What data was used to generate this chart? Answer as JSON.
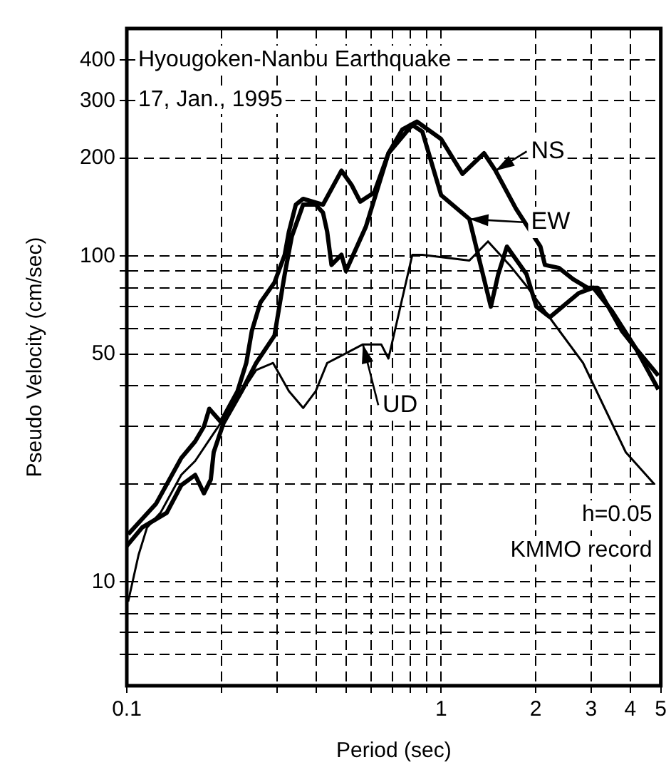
{
  "chart_data": {
    "type": "line",
    "xlabel": "Period (sec)",
    "ylabel": "Pseudo Velocity (cm/sec)",
    "annotations": [
      "Hyougoken-Nanbu Earthquake",
      "17, Jan., 1995",
      "h=0.05",
      "KMMO record"
    ],
    "log": "xy",
    "grid": true,
    "legend": "top right",
    "marker": "none",
    "line_style": "solid",
    "xlim": [
      0.1,
      5
    ],
    "ylim": [
      4.8,
      500
    ],
    "xticks": [
      0.1,
      {
        "value": 0.2,
        "label": null
      },
      {
        "value": 0.3,
        "label": null
      },
      {
        "value": 0.4,
        "label": null
      },
      {
        "value": 0.5,
        "label": null
      },
      {
        "value": 0.6,
        "label": null
      },
      {
        "value": 0.7,
        "label": null
      },
      {
        "value": 0.8,
        "label": null
      },
      {
        "value": 0.9,
        "label": null
      },
      1,
      2,
      3,
      4,
      5
    ],
    "yticks": [
      {
        "value": 6,
        "label": null
      },
      {
        "value": 7,
        "label": null
      },
      {
        "value": 8,
        "label": null
      },
      {
        "value": 9,
        "label": null
      },
      10,
      {
        "value": 20,
        "label": null
      },
      {
        "value": 30,
        "label": null
      },
      {
        "value": 40,
        "label": null
      },
      50,
      {
        "value": 60,
        "label": null
      },
      {
        "value": 70,
        "label": null
      },
      {
        "value": 80,
        "label": null
      },
      {
        "value": 90,
        "label": null
      },
      100,
      200,
      300,
      400
    ],
    "series": [
      {
        "name": "NS",
        "color": "#000000",
        "x": [
          0.101,
          0.124,
          0.149,
          0.165,
          0.176,
          0.183,
          0.199,
          0.225,
          0.24,
          0.25,
          0.266,
          0.295,
          0.318,
          0.328,
          0.345,
          0.364,
          0.421,
          0.482,
          0.52,
          0.553,
          0.613,
          0.68,
          0.753,
          0.837,
          1.0,
          1.17,
          1.37,
          1.49,
          1.73,
          2.07,
          2.14,
          2.37,
          2.63,
          2.92,
          3.15,
          3.76,
          4.17,
          4.91
        ],
        "values": [
          14,
          17.4,
          24,
          27,
          30,
          34,
          31,
          38.5,
          47,
          59,
          72,
          83,
          101,
          119,
          144,
          150,
          144,
          183,
          165,
          147,
          157,
          207,
          245,
          259,
          229,
          179,
          207,
          183,
          140,
          107,
          94,
          92,
          85,
          80,
          80,
          59,
          52,
          39
        ]
      },
      {
        "name": "EW",
        "color": "#000000",
        "x": [
          0.1,
          0.112,
          0.134,
          0.149,
          0.165,
          0.176,
          0.185,
          0.189,
          0.203,
          0.232,
          0.258,
          0.295,
          0.318,
          0.335,
          0.364,
          0.399,
          0.421,
          0.434,
          0.448,
          0.482,
          0.498,
          0.576,
          0.68,
          0.81,
          0.872,
          1.0,
          1.23,
          1.37,
          1.44,
          1.52,
          1.62,
          1.87,
          2.01,
          2.22,
          2.74,
          3.05,
          3.49,
          4.17,
          4.91
        ],
        "values": [
          12.9,
          14.7,
          16.3,
          19.8,
          21.3,
          18.7,
          20.6,
          25,
          30.7,
          38.5,
          47,
          57,
          88,
          115,
          144,
          144,
          136,
          119,
          94,
          101,
          90,
          123,
          207,
          253,
          241,
          154,
          130,
          85,
          70,
          88,
          107,
          88,
          70,
          65,
          77,
          80,
          68,
          52,
          43
        ]
      },
      {
        "name": "UD",
        "color": "#000000",
        "x": [
          0.101,
          0.109,
          0.116,
          0.128,
          0.149,
          0.165,
          0.189,
          0.225,
          0.258,
          0.292,
          0.328,
          0.364,
          0.399,
          0.434,
          0.482,
          0.564,
          0.645,
          0.68,
          0.81,
          0.872,
          1.23,
          1.41,
          1.65,
          1.87,
          2.29,
          2.83,
          3.87,
          4.76
        ],
        "values": [
          8.7,
          12.1,
          14.7,
          16.3,
          21.3,
          23.5,
          28.6,
          36.6,
          44.7,
          47,
          38.5,
          34.2,
          38.5,
          47,
          49.5,
          53.6,
          53.6,
          48.5,
          101,
          101,
          97,
          111,
          94,
          81,
          62,
          47,
          25,
          20
        ]
      }
    ]
  }
}
